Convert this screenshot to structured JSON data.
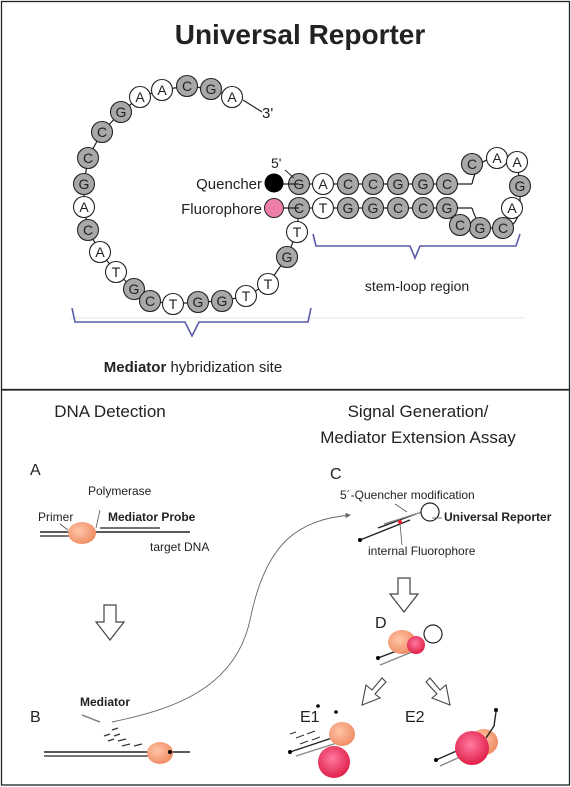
{
  "top": {
    "title": "Universal Reporter",
    "loop_sequence": [
      "A",
      "G",
      "C",
      "A",
      "A",
      "G",
      "C",
      "C",
      "G",
      "A",
      "C",
      "A",
      "T",
      "G",
      "C",
      "T",
      "G",
      "G",
      "T",
      "T",
      "G",
      "T"
    ],
    "stem_top": [
      "G",
      "A",
      "C",
      "C",
      "G",
      "G",
      "C"
    ],
    "stem_bottom": [
      "C",
      "T",
      "G",
      "G",
      "C",
      "C",
      "G"
    ],
    "hairpin": [
      "C",
      "A",
      "A",
      "G",
      "A",
      "C",
      "G",
      "C"
    ],
    "end_3": "3'",
    "end_5": "5'",
    "quencher_label": "Quencher",
    "fluorophore_label": "Fluorophore",
    "stem_loop_label": "stem-loop region",
    "hybrid_label_bold": "Mediator",
    "hybrid_label_rest": " hybridization site",
    "colors": {
      "dark_nucleotide": "#a8a8a8",
      "light_nucleotide": "#ffffff",
      "quencher": "#000000",
      "fluorophore": "#ee7ea8",
      "brace": "#5a5aa8"
    }
  },
  "bottom": {
    "left_title": "DNA Detection",
    "right_title_line1": "Signal Generation/",
    "right_title_line2": "Mediator Extension Assay",
    "label_a": "A",
    "label_b": "B",
    "label_c": "C",
    "label_d": "D",
    "label_e1": "E1",
    "label_e2": "E2",
    "polymerase": "Polymerase",
    "primer": "Primer",
    "mediator_probe": "Mediator Probe",
    "target_dna": "target DNA",
    "mediator": "Mediator",
    "quencher_mod": "5´-Quencher modification",
    "universal_reporter": "Universal Reporter",
    "internal_fluorophore": "internal Fluorophore",
    "colors": {
      "polymerase": "#f19a78",
      "fluorophore_glow": "#e8305a"
    }
  }
}
